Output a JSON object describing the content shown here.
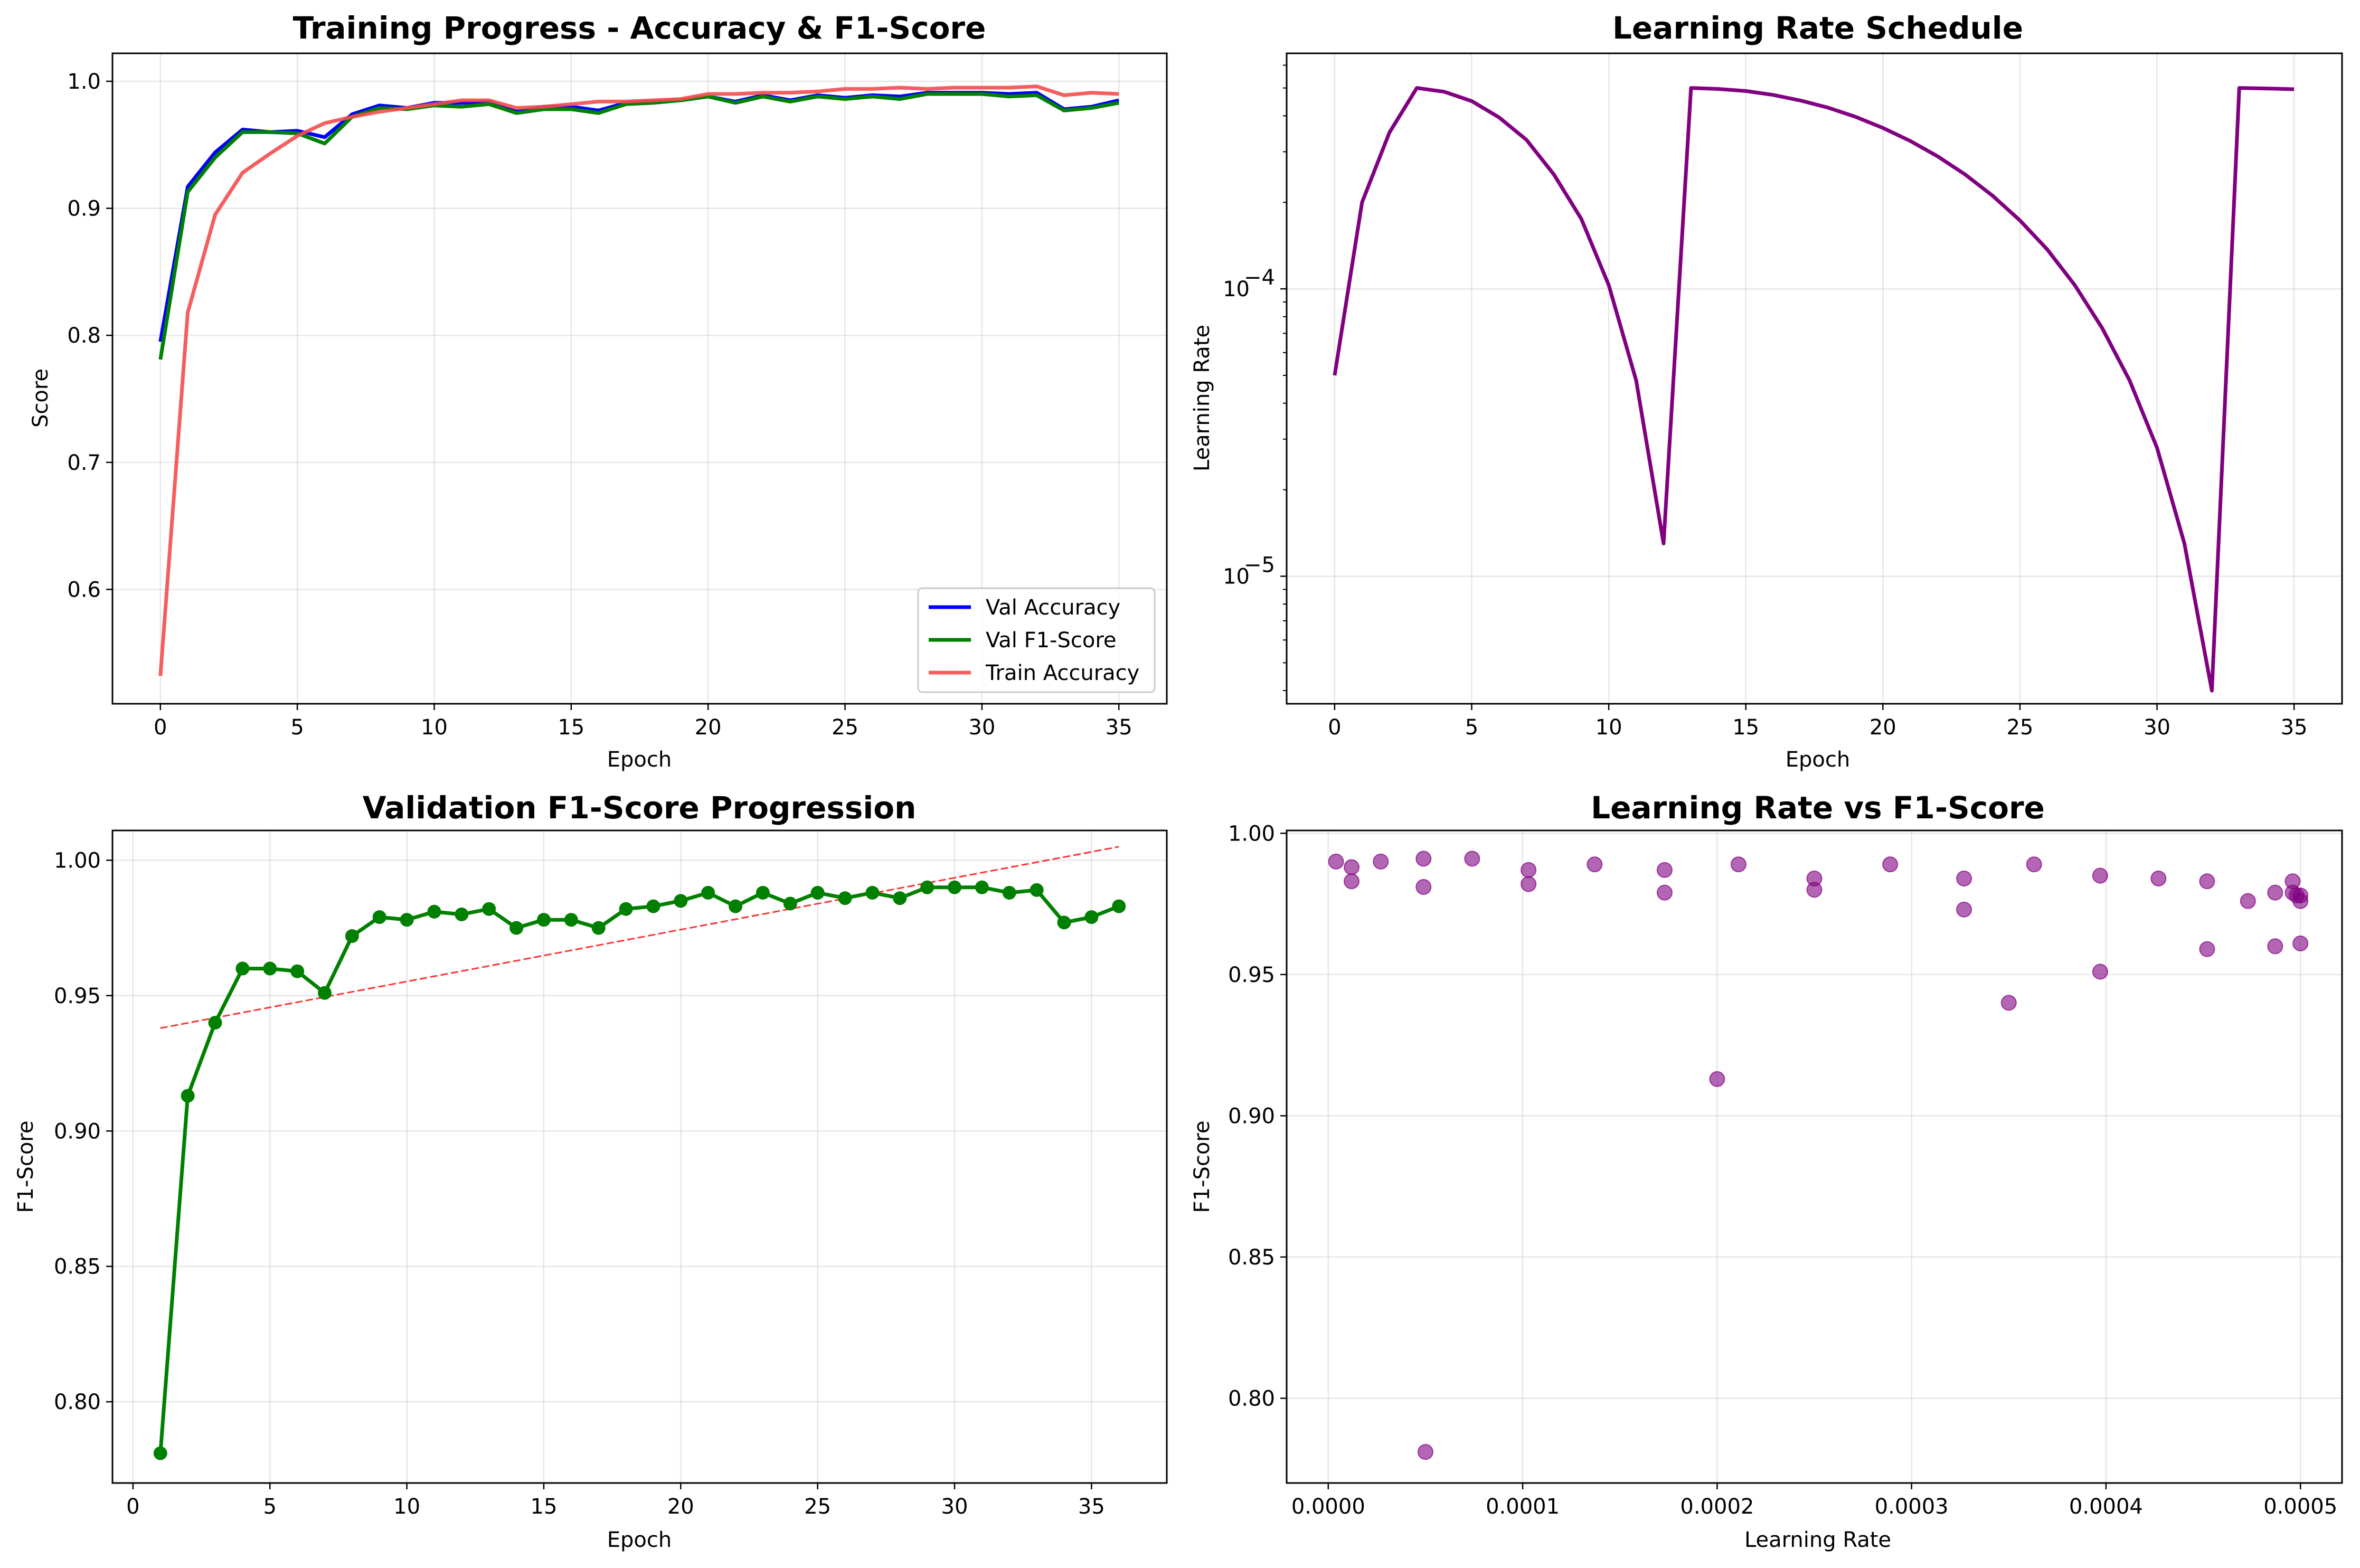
{
  "chart_data": [
    {
      "type": "line",
      "title": "Training Progress - Accuracy & F1-Score",
      "xlabel": "Epoch",
      "ylabel": "Score",
      "xlim": [
        -1.75,
        36.75
      ],
      "ylim": [
        0.51,
        1.022
      ],
      "xticks": [
        0,
        5,
        10,
        15,
        20,
        25,
        30,
        35
      ],
      "yticks": [
        0.6,
        0.7,
        0.8,
        0.9,
        1.0
      ],
      "grid": true,
      "legend": "lower-right",
      "x": [
        0,
        1,
        2,
        3,
        4,
        5,
        6,
        7,
        8,
        9,
        10,
        11,
        12,
        13,
        14,
        15,
        16,
        17,
        18,
        19,
        20,
        21,
        22,
        23,
        24,
        25,
        26,
        27,
        28,
        29,
        30,
        31,
        32,
        33,
        34,
        35
      ],
      "series": [
        {
          "name": "Val Accuracy",
          "color": "#0000ff",
          "values": [
            0.795,
            0.917,
            0.944,
            0.962,
            0.96,
            0.961,
            0.956,
            0.974,
            0.981,
            0.979,
            0.983,
            0.983,
            0.984,
            0.976,
            0.98,
            0.98,
            0.977,
            0.983,
            0.984,
            0.985,
            0.988,
            0.984,
            0.989,
            0.985,
            0.989,
            0.987,
            0.989,
            0.988,
            0.991,
            0.991,
            0.991,
            0.99,
            0.991,
            0.978,
            0.98,
            0.985
          ]
        },
        {
          "name": "Val F1-Score",
          "color": "#008000",
          "values": [
            0.781,
            0.913,
            0.94,
            0.96,
            0.96,
            0.959,
            0.951,
            0.972,
            0.979,
            0.978,
            0.981,
            0.98,
            0.982,
            0.975,
            0.978,
            0.978,
            0.975,
            0.982,
            0.983,
            0.985,
            0.988,
            0.983,
            0.988,
            0.984,
            0.988,
            0.986,
            0.988,
            0.986,
            0.99,
            0.99,
            0.99,
            0.988,
            0.989,
            0.977,
            0.979,
            0.983
          ]
        },
        {
          "name": "Train Accuracy",
          "color": "#f44c4c",
          "values": [
            0.532,
            0.818,
            0.895,
            0.928,
            0.943,
            0.957,
            0.967,
            0.972,
            0.976,
            0.979,
            0.982,
            0.985,
            0.985,
            0.979,
            0.98,
            0.982,
            0.984,
            0.984,
            0.985,
            0.986,
            0.99,
            0.99,
            0.991,
            0.991,
            0.992,
            0.994,
            0.994,
            0.995,
            0.994,
            0.995,
            0.995,
            0.995,
            0.996,
            0.989,
            0.991,
            0.99
          ]
        }
      ]
    },
    {
      "type": "line",
      "title": "Learning Rate Schedule",
      "xlabel": "Epoch",
      "ylabel": "Learning Rate",
      "yscale": "log",
      "xlim": [
        -1.75,
        36.75
      ],
      "ylim": [
        3.6e-06,
        0.00066
      ],
      "xticks": [
        0,
        5,
        10,
        15,
        20,
        25,
        30,
        35
      ],
      "ytick_labels": [
        {
          "value": 0.0001,
          "base": "10",
          "exp": "−4"
        },
        {
          "value": 1e-05,
          "base": "10",
          "exp": "−5"
        }
      ],
      "grid": true,
      "x": [
        0,
        1,
        2,
        3,
        4,
        5,
        6,
        7,
        8,
        9,
        10,
        11,
        12,
        13,
        14,
        15,
        16,
        17,
        18,
        19,
        20,
        21,
        22,
        23,
        24,
        25,
        26,
        27,
        28,
        29,
        30,
        31,
        32,
        33,
        34,
        35
      ],
      "series": [
        {
          "color": "#800080",
          "values": [
            5e-05,
            0.0002,
            0.00035,
            0.0005,
            0.000485,
            0.00045,
            0.000395,
            0.00033,
            0.00025,
            0.000175,
            0.000103,
            4.8e-05,
            1.3e-05,
            0.0005,
            0.000496,
            0.000488,
            0.000473,
            0.000452,
            0.000427,
            0.000397,
            0.000363,
            0.000327,
            0.000289,
            0.00025,
            0.000211,
            0.000173,
            0.000137,
            0.000103,
            7.3e-05,
            4.8e-05,
            2.8e-05,
            1.3e-05,
            4e-06,
            0.0005,
            0.000498,
            0.000495
          ]
        }
      ]
    },
    {
      "type": "line",
      "title": "Validation F1-Score Progression",
      "xlabel": "Epoch",
      "ylabel": "F1-Score",
      "xlim": [
        -0.75,
        37.75
      ],
      "ylim": [
        0.77,
        1.011
      ],
      "xticks": [
        0,
        5,
        10,
        15,
        20,
        25,
        30,
        35
      ],
      "yticks": [
        0.8,
        0.85,
        0.9,
        0.95,
        1.0
      ],
      "grid": true,
      "x": [
        1,
        2,
        3,
        4,
        5,
        6,
        7,
        8,
        9,
        10,
        11,
        12,
        13,
        14,
        15,
        16,
        17,
        18,
        19,
        20,
        21,
        22,
        23,
        24,
        25,
        26,
        27,
        28,
        29,
        30,
        31,
        32,
        33,
        34,
        35,
        36
      ],
      "series": [
        {
          "color": "#008000",
          "markers": true,
          "values": [
            0.781,
            0.913,
            0.94,
            0.96,
            0.96,
            0.959,
            0.951,
            0.972,
            0.979,
            0.978,
            0.981,
            0.98,
            0.982,
            0.975,
            0.978,
            0.978,
            0.975,
            0.982,
            0.983,
            0.985,
            0.988,
            0.983,
            0.988,
            0.984,
            0.988,
            0.986,
            0.988,
            0.986,
            0.99,
            0.99,
            0.99,
            0.988,
            0.989,
            0.977,
            0.979,
            0.983
          ]
        }
      ],
      "trendline": {
        "color": "#ff0000",
        "x": [
          1,
          36
        ],
        "y": [
          0.938,
          1.005
        ]
      }
    },
    {
      "type": "scatter",
      "title": "Learning Rate vs F1-Score",
      "xlabel": "Learning Rate",
      "ylabel": "F1-Score",
      "xlim": [
        -2.14e-05,
        0.0005214
      ],
      "ylim": [
        0.77,
        1.001
      ],
      "xticks": [
        0.0,
        0.0001,
        0.0002,
        0.0003,
        0.0004,
        0.0005
      ],
      "xtick_labels": [
        "0.0000",
        "0.0001",
        "0.0002",
        "0.0003",
        "0.0004",
        "0.0005"
      ],
      "yticks": [
        0.8,
        0.85,
        0.9,
        0.95,
        1.0
      ],
      "grid": true,
      "color": "#800080",
      "x": [
        4e-06,
        1.2e-05,
        1.2e-05,
        2.7e-05,
        4.9e-05,
        4.9e-05,
        5e-05,
        7.4e-05,
        0.000103,
        0.000103,
        0.000137,
        0.000173,
        0.000173,
        0.0002,
        0.000211,
        0.00025,
        0.00025,
        0.000289,
        0.000327,
        0.000327,
        0.00035,
        0.000363,
        0.000397,
        0.000397,
        0.000427,
        0.000452,
        0.000452,
        0.000473,
        0.000487,
        0.000487,
        0.000496,
        0.000496,
        0.000498,
        0.0005,
        0.0005,
        0.0005
      ],
      "y": [
        0.99,
        0.983,
        0.988,
        0.99,
        0.991,
        0.981,
        0.781,
        0.991,
        0.987,
        0.982,
        0.989,
        0.987,
        0.979,
        0.913,
        0.989,
        0.984,
        0.98,
        0.989,
        0.984,
        0.973,
        0.94,
        0.989,
        0.985,
        0.951,
        0.984,
        0.983,
        0.959,
        0.976,
        0.979,
        0.96,
        0.983,
        0.979,
        0.978,
        0.976,
        0.961,
        0.978
      ]
    }
  ]
}
